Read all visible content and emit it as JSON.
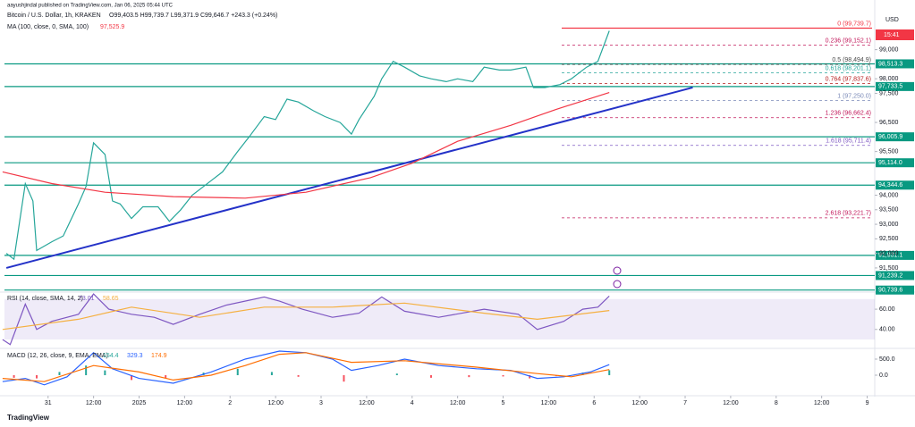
{
  "chart_data": [
    {
      "type": "line",
      "source": "aayushjindal published on TradingView.com, Jan 06, 2025 05:44 UTC",
      "title": "Bitcoin / U.S. Dollar, 1h, KRAKEN",
      "subtitle": "O99,403.5 H99,739.7 L99,371.9 C99,646.7 +243.3 (+0.24%)",
      "y_label": "USD",
      "countdown": "15:41",
      "xlim": [
        -11.5,
        218
      ],
      "ylim": [
        90700,
        100400
      ],
      "yticks": [
        {
          "value": 99000,
          "label": "99,000"
        },
        {
          "value": 98000,
          "label": "98,000"
        },
        {
          "value": 97500,
          "label": "97,500"
        },
        {
          "value": 96500,
          "label": "96,500"
        },
        {
          "value": 95500,
          "label": "95,500"
        },
        {
          "value": 94000,
          "label": "94,000"
        },
        {
          "value": 93500,
          "label": "93,500"
        },
        {
          "value": 93000,
          "label": "93,000"
        },
        {
          "value": 92500,
          "label": "92,500"
        },
        {
          "value": 92000,
          "label": "92,000"
        },
        {
          "value": 91500,
          "label": "91,500"
        }
      ],
      "series": [
        {
          "color": "#26a69a",
          "x": [
            -11,
            -9,
            -6,
            -4,
            -3,
            1,
            4,
            8,
            10,
            12,
            15,
            17,
            19,
            22,
            25,
            29,
            32,
            35,
            38,
            43,
            46,
            50,
            53,
            57,
            60,
            63,
            66,
            70,
            73,
            77,
            80,
            82,
            86,
            88,
            91,
            94,
            98,
            101,
            105,
            108,
            112,
            115,
            119,
            122,
            126,
            128,
            131,
            135,
            138,
            142,
            145,
            148
          ],
          "values": [
            92000,
            91800,
            94400,
            93800,
            92100,
            92400,
            92600,
            93700,
            94300,
            95800,
            95400,
            93800,
            93700,
            93200,
            93600,
            93600,
            93100,
            93500,
            94000,
            94500,
            94800,
            95500,
            96000,
            96700,
            96600,
            97300,
            97200,
            96900,
            96700,
            96500,
            96100,
            96600,
            97400,
            98000,
            98600,
            98400,
            98100,
            98000,
            97900,
            98000,
            97900,
            98400,
            98300,
            98300,
            98400,
            97700,
            97700,
            97800,
            98000,
            98400,
            98600,
            99646.7
          ]
        },
        {
          "name": "MA (100, close, 0, SMA, 100)",
          "value_label": "97,525.9",
          "color": "#f23645",
          "x": [
            -12,
            1,
            15,
            33,
            52,
            68,
            85,
            96,
            108,
            122,
            134,
            148
          ],
          "values": [
            94800,
            94400,
            94100,
            93950,
            93900,
            94100,
            94600,
            95100,
            95850,
            96400,
            96950,
            97525.9
          ]
        }
      ],
      "trendline": {
        "color": "#2432c8",
        "x": [
          -11,
          170
        ],
        "values": [
          91500,
          97700
        ]
      },
      "levels": [
        {
          "value": 98513.3,
          "label": "98,513.3"
        },
        {
          "value": 97733.5,
          "label": "97,733.5"
        },
        {
          "value": 96005.9,
          "label": "96,005.9"
        },
        {
          "value": 95114.0,
          "label": "95,114.0"
        },
        {
          "value": 94344.6,
          "label": "94,344.6"
        },
        {
          "value": 91931.1,
          "label": "91,931.1"
        },
        {
          "value": 91239.2,
          "label": "91,239.2"
        },
        {
          "value": 90739.6,
          "label": "90,739.6"
        }
      ],
      "level_color": "#089981",
      "fib": [
        {
          "value": 99739.7,
          "label": "0 (99,739.7)",
          "color": "#f23645"
        },
        {
          "value": 99152.1,
          "label": "0.236 (99,152.1)",
          "color": "#c2185b"
        },
        {
          "value": 98494.9,
          "label": "0.5 (98,494.9)",
          "color": "#4a4a4a"
        },
        {
          "value": 98201.1,
          "label": "0.618 (98,201.1)",
          "color": "#26a69a"
        },
        {
          "value": 97837.6,
          "label": "0.764 (97,837.6)",
          "color": "#b71c1c"
        },
        {
          "value": 97250.0,
          "label": "1 (97,250.0)",
          "color": "#7b8ab8"
        },
        {
          "value": 96662.4,
          "label": "1.236 (96,662.4)",
          "color": "#c2185b"
        },
        {
          "value": 95711.4,
          "label": "1.618 (95,711.4)",
          "color": "#7e57c2"
        },
        {
          "value": 93221.7,
          "label": "2.618 (93,221.7)",
          "color": "#c2185b"
        }
      ]
    },
    {
      "type": "line",
      "title": "RSI (14, close, SMA, 14, 2)",
      "xlim": [
        -11.5,
        218
      ],
      "ylim": [
        23,
        76
      ],
      "yticks": [
        {
          "value": 60,
          "label": "60.00"
        },
        {
          "value": 40,
          "label": "40.00"
        }
      ],
      "band": [
        30,
        70
      ],
      "series": [
        {
          "value_label": "73.01",
          "color": "#7e57c2",
          "x": [
            -12,
            -10,
            -6,
            -3,
            1,
            8,
            12,
            16,
            22,
            28,
            33,
            40,
            47,
            57,
            61,
            67,
            75,
            82,
            88,
            94,
            103,
            115,
            124,
            129,
            136,
            141,
            145,
            148
          ],
          "values": [
            30,
            25,
            65,
            40,
            48,
            55,
            75,
            60,
            55,
            52,
            45,
            55,
            64,
            72,
            68,
            60,
            52,
            56,
            72,
            58,
            52,
            60,
            55,
            40,
            48,
            60,
            62,
            73.01
          ]
        },
        {
          "value_label": "58.65",
          "color": "#f5b041",
          "x": [
            -12,
            8,
            22,
            40,
            57,
            75,
            94,
            115,
            129,
            148
          ],
          "values": [
            40,
            50,
            62,
            52,
            62,
            62,
            66,
            56,
            50,
            58.65
          ]
        }
      ]
    },
    {
      "type": "line",
      "title": "MACD (12, 26, close, 9, EMA, EMA)",
      "xlim": [
        -11.5,
        218
      ],
      "ylim": [
        -611,
        778
      ],
      "yticks": [
        {
          "value": 500,
          "label": "500.0"
        },
        {
          "value": 0,
          "label": "0.0"
        }
      ],
      "xticks": [
        {
          "value": 0,
          "label": "31"
        },
        {
          "value": 12,
          "label": "12:00"
        },
        {
          "value": 24,
          "label": "2025"
        },
        {
          "value": 36,
          "label": "12:00"
        },
        {
          "value": 48,
          "label": "2"
        },
        {
          "value": 60,
          "label": "12:00"
        },
        {
          "value": 72,
          "label": "3"
        },
        {
          "value": 84,
          "label": "12:00"
        },
        {
          "value": 96,
          "label": "4"
        },
        {
          "value": 108,
          "label": "12:00"
        },
        {
          "value": 120,
          "label": "5"
        },
        {
          "value": 132,
          "label": "12:00"
        },
        {
          "value": 144,
          "label": "6"
        },
        {
          "value": 156,
          "label": "12:00"
        },
        {
          "value": 168,
          "label": "7"
        },
        {
          "value": 180,
          "label": "12:00"
        },
        {
          "value": 192,
          "label": "8"
        },
        {
          "value": 204,
          "label": "12:00"
        },
        {
          "value": 216,
          "label": "9"
        }
      ],
      "series": [
        {
          "type": "bar",
          "value_label": "154.4",
          "color": "#26a69a",
          "x": [
            -9,
            -3,
            3,
            10,
            15,
            22,
            31,
            41,
            50,
            59,
            66,
            78,
            92,
            101,
            111,
            120,
            127,
            134,
            141,
            148
          ],
          "values": [
            -80,
            -100,
            100,
            300,
            150,
            -150,
            -100,
            80,
            200,
            100,
            -50,
            -200,
            50,
            -80,
            -60,
            -40,
            -100,
            -30,
            80,
            154.4
          ]
        },
        {
          "value_label": "329.3",
          "color": "#2962ff",
          "x": [
            -12,
            -6,
            -1,
            5,
            12,
            17,
            24,
            33,
            43,
            52,
            61,
            68,
            75,
            80,
            87,
            94,
            103,
            113,
            122,
            129,
            136,
            143,
            148
          ],
          "values": [
            -200,
            -100,
            -300,
            -50,
            700,
            200,
            -100,
            -250,
            100,
            500,
            750,
            700,
            500,
            150,
            300,
            500,
            300,
            200,
            150,
            -100,
            -50,
            100,
            329.3
          ]
        },
        {
          "value_label": "174.9",
          "color": "#ff6d00",
          "x": [
            -12,
            -1,
            12,
            24,
            33,
            43,
            52,
            61,
            68,
            80,
            94,
            113,
            129,
            138,
            148
          ],
          "values": [
            -100,
            -200,
            300,
            100,
            -150,
            0,
            300,
            650,
            700,
            400,
            450,
            250,
            50,
            -50,
            174.9
          ]
        }
      ]
    }
  ]
}
